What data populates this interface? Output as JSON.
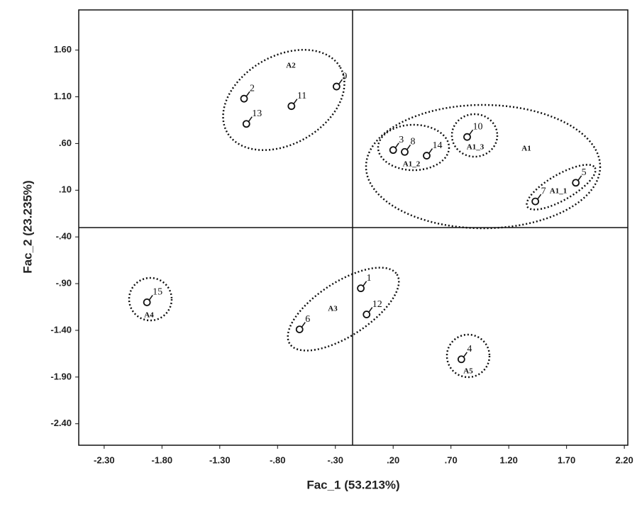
{
  "chart_data": {
    "type": "scatter",
    "x_label": "Fac_1 (53.213%)",
    "y_label": "Fac_2 (23.235%)",
    "labels": [
      "2",
      "11",
      "9",
      "13",
      "3",
      "8",
      "14",
      "10",
      "5",
      "7",
      "1",
      "12",
      "6",
      "15",
      "4"
    ],
    "x": [
      -1.09,
      -0.68,
      -0.29,
      -1.07,
      0.2,
      0.3,
      0.49,
      0.84,
      1.78,
      1.43,
      -0.08,
      -0.03,
      -0.61,
      -1.93,
      0.79
    ],
    "values": [
      1.08,
      1.0,
      1.21,
      0.81,
      0.53,
      0.51,
      0.47,
      0.67,
      0.18,
      -0.02,
      -0.95,
      -1.23,
      -1.39,
      -1.1,
      -1.71
    ],
    "groups": [
      "A2",
      "A1",
      "A1_2",
      "A1_3",
      "A1_1",
      "A3",
      "A4",
      "A5"
    ],
    "color": "#111111",
    "xlim": [
      -2.52,
      2.23
    ],
    "ylim": [
      -2.63,
      2.03
    ],
    "xticks": [
      {
        "value": -2.3,
        "label": "-2.30"
      },
      {
        "value": -1.8,
        "label": "-1.80"
      },
      {
        "value": -1.3,
        "label": "-1.30"
      },
      {
        "value": -0.8,
        "label": "-.80"
      },
      {
        "value": -0.3,
        "label": "-.30"
      },
      {
        "value": 0.2,
        "label": ".20"
      },
      {
        "value": 0.7,
        "label": ".70"
      },
      {
        "value": 1.2,
        "label": "1.20"
      },
      {
        "value": 1.7,
        "label": "1.70"
      },
      {
        "value": 2.2,
        "label": "2.20"
      }
    ],
    "yticks": [
      {
        "value": 1.6,
        "label": "1.60"
      },
      {
        "value": 1.1,
        "label": "1.10"
      },
      {
        "value": 0.6,
        "label": ".60"
      },
      {
        "value": 0.1,
        "label": ".10"
      },
      {
        "value": -0.4,
        "label": "-.40"
      },
      {
        "value": -0.9,
        "label": "-.90"
      },
      {
        "value": -1.4,
        "label": "-1.40"
      },
      {
        "value": -1.9,
        "label": "-1.90"
      },
      {
        "value": -2.4,
        "label": "-2.40"
      }
    ]
  }
}
